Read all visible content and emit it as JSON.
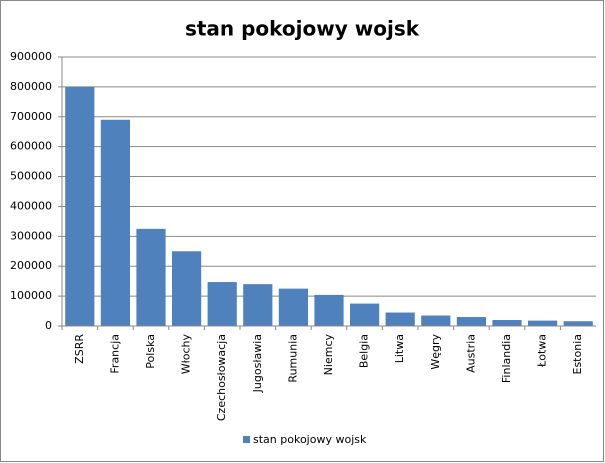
{
  "chart_data": {
    "type": "bar",
    "title": "stan pokojowy wojsk",
    "categories": [
      "ZSRR",
      "Francja",
      "Polska",
      "Włochy",
      "Czechosłowacja",
      "Jugosławia",
      "Rumunia",
      "Niemcy",
      "Belgia",
      "Litwa",
      "Węgry",
      "Austria",
      "Finlandia",
      "Łotwa",
      "Estonia"
    ],
    "series": [
      {
        "name": "stan pokojowy wojsk",
        "color": "#4f81bd",
        "values": [
          800000,
          690000,
          325000,
          250000,
          147000,
          140000,
          125000,
          104000,
          75000,
          45000,
          35000,
          30000,
          20000,
          18000,
          16000
        ]
      }
    ],
    "ylim": [
      0,
      900000
    ],
    "yticks": [
      0,
      100000,
      200000,
      300000,
      400000,
      500000,
      600000,
      700000,
      800000,
      900000
    ],
    "grid": true,
    "legend": "bottom"
  }
}
